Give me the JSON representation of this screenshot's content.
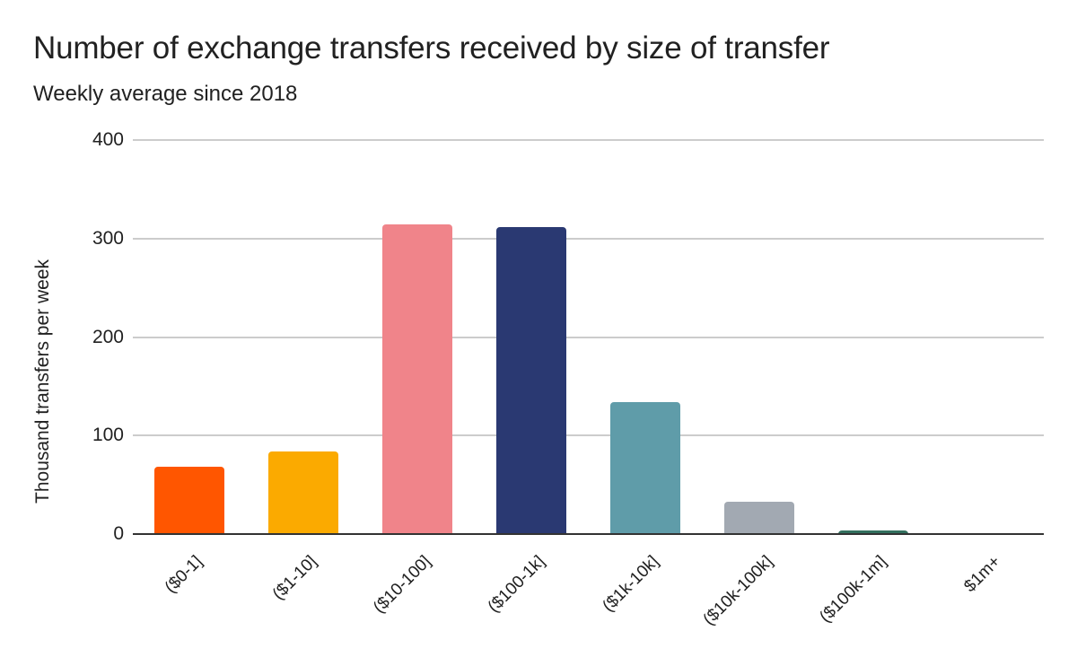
{
  "chart_data": {
    "type": "bar",
    "title": "Number of exchange transfers received by size of transfer",
    "subtitle": "Weekly average since 2018",
    "xlabel": "",
    "ylabel": "Thousand transfers per week",
    "ylim": [
      0,
      400
    ],
    "yticks": [
      "0",
      "100",
      "200",
      "300",
      "400"
    ],
    "grid": true,
    "legend": "none",
    "categories": [
      "($0-1]",
      "($1-10]",
      "($10-100]",
      "($100-1k]",
      "($1k-10k]",
      "($10k-100k]",
      "($100k-1m]",
      "$1m+"
    ],
    "values": [
      68,
      84,
      314,
      312,
      134,
      33,
      4,
      0.5
    ],
    "colors": [
      "#ff5600",
      "#fbaa00",
      "#f0848a",
      "#2a3972",
      "#5f9ca9",
      "#a2a9b2",
      "#33705e",
      "#7ec8a8"
    ]
  }
}
